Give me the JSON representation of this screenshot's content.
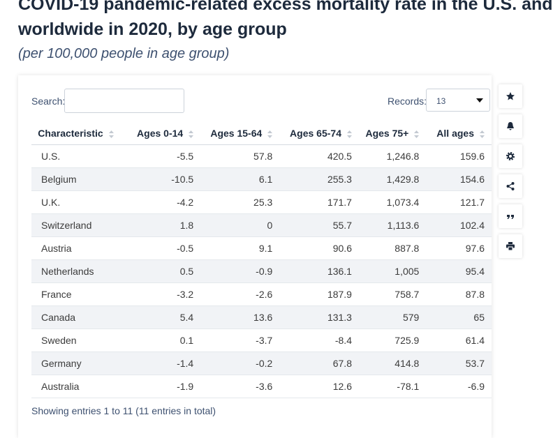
{
  "header": {
    "title_lines": [
      "COVID-19 pandemic-related excess mortality rate in the U.S. and",
      "worldwide in 2020, by age group"
    ],
    "subtitle": "(per 100,000 people in age group)"
  },
  "controls": {
    "search_label": "Search:",
    "records_label": "Records:",
    "records_value": "13"
  },
  "table": {
    "columns": [
      "Characteristic",
      "Ages 0-14",
      "Ages 15-64",
      "Ages 65-74",
      "Ages 75+",
      "All ages"
    ],
    "rows": [
      [
        "U.S.",
        "-5.5",
        "57.8",
        "420.5",
        "1,246.8",
        "159.6"
      ],
      [
        "Belgium",
        "-10.5",
        "6.1",
        "255.3",
        "1,429.8",
        "154.6"
      ],
      [
        "U.K.",
        "-4.2",
        "25.3",
        "171.7",
        "1,073.4",
        "121.7"
      ],
      [
        "Switzerland",
        "1.8",
        "0",
        "55.7",
        "1,113.6",
        "102.4"
      ],
      [
        "Austria",
        "-0.5",
        "9.1",
        "90.6",
        "887.8",
        "97.6"
      ],
      [
        "Netherlands",
        "0.5",
        "-0.9",
        "136.1",
        "1,005",
        "95.4"
      ],
      [
        "France",
        "-3.2",
        "-2.6",
        "187.9",
        "758.7",
        "87.8"
      ],
      [
        "Canada",
        "5.4",
        "13.6",
        "131.3",
        "579",
        "65"
      ],
      [
        "Sweden",
        "0.1",
        "-3.7",
        "-8.4",
        "725.9",
        "61.4"
      ],
      [
        "Germany",
        "-1.4",
        "-0.2",
        "67.8",
        "414.8",
        "53.7"
      ],
      [
        "Australia",
        "-1.9",
        "-3.6",
        "12.6",
        "-78.1",
        "-6.9"
      ]
    ]
  },
  "footer": "Showing entries 1 to 11 (11 entries in total)"
}
